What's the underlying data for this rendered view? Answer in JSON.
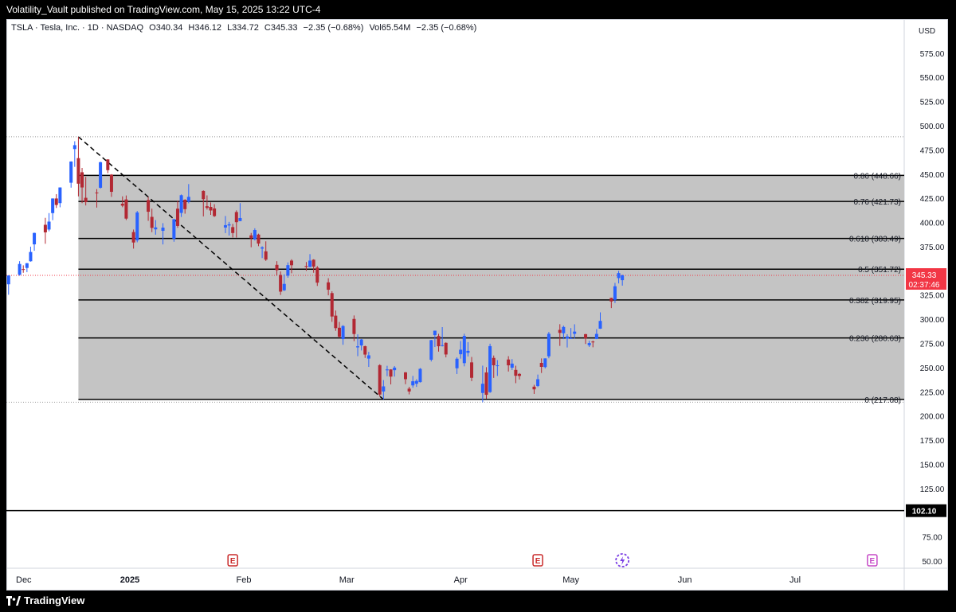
{
  "header": {
    "publisher_line": "Volatility_Vault published on TradingView.com, May 15, 2025 13:22 UTC-4"
  },
  "legend": {
    "symbol": "TSLA · Tesla, Inc. · 1D · NASDAQ",
    "open": "O340.34",
    "high": "H346.12",
    "low": "L334.72",
    "close": "C345.33",
    "change": "−2.35 (−0.68%)",
    "volume": "Vol65.54M",
    "vol_change": "−2.35 (−0.68%)"
  },
  "footer": {
    "brand": "TradingView"
  },
  "colors": {
    "up": "#2962ff",
    "down": "#b22833",
    "fib_zone": "#c4c4c4",
    "price_tag": "#f23645"
  },
  "chart_data": {
    "type": "candlestick",
    "currency": "USD",
    "ylim": [
      45,
      600
    ],
    "y_ticks": [
      50,
      75,
      100,
      125,
      150,
      175,
      200,
      225,
      250,
      275,
      300,
      325,
      350,
      375,
      400,
      425,
      450,
      475,
      500,
      525,
      550,
      575
    ],
    "y_tick_labels": [
      "50.00",
      "75.00",
      "100.00",
      "125.00",
      "150.00",
      "175.00",
      "200.00",
      "225.00",
      "250.00",
      "275.00",
      "300.00",
      "325.00",
      "350.00",
      "375.00",
      "400.00",
      "425.00",
      "450.00",
      "475.00",
      "500.00",
      "525.00",
      "550.00",
      "575.00"
    ],
    "x_labels": [
      {
        "label": "Dec",
        "date": "2024-12-01",
        "bold": false
      },
      {
        "label": "2025",
        "date": "2025-01-01",
        "bold": true
      },
      {
        "label": "Feb",
        "date": "2025-02-01",
        "bold": false
      },
      {
        "label": "Mar",
        "date": "2025-03-01",
        "bold": false
      },
      {
        "label": "Apr",
        "date": "2025-04-01",
        "bold": false
      },
      {
        "label": "May",
        "date": "2025-05-01",
        "bold": false
      },
      {
        "label": "Jun",
        "date": "2025-06-01",
        "bold": false
      },
      {
        "label": "Jul",
        "date": "2025-07-01",
        "bold": false
      }
    ],
    "last_price": {
      "value": 345.33,
      "label": "345.33",
      "countdown": "02:37:46"
    },
    "support_line": {
      "value": 102.1,
      "label": "102.10"
    },
    "fib_levels": [
      {
        "ratio": 0.86,
        "value": 448.66,
        "label": "0.86 (448.66)"
      },
      {
        "ratio": 0.76,
        "value": 421.73,
        "label": "0.76 (421.73)"
      },
      {
        "ratio": 0.618,
        "value": 383.49,
        "label": "0.618 (383.49)"
      },
      {
        "ratio": 0.5,
        "value": 351.72,
        "label": "0.5 (351.72)"
      },
      {
        "ratio": 0.382,
        "value": 319.95,
        "label": "0.382 (319.95)"
      },
      {
        "ratio": 0.236,
        "value": 280.63,
        "label": "0.236 (280.63)"
      },
      {
        "ratio": 0,
        "value": 217.08,
        "label": "0 (217.08)"
      }
    ],
    "fib_range": {
      "start": "2024-12-18",
      "end": "2025-07-24",
      "high": 488.54,
      "low": 214.25
    },
    "trend_line": {
      "from": {
        "date": "2024-12-18",
        "value": 488.54
      },
      "to": {
        "date": "2025-03-11",
        "value": 217.08
      }
    },
    "earnings_markers": [
      {
        "date": "2025-01-29",
        "label": "E"
      },
      {
        "date": "2025-04-22",
        "label": "E"
      },
      {
        "date": "2025-07-22",
        "label": "E"
      }
    ],
    "event_markers": [
      {
        "date": "2025-05-15"
      }
    ],
    "candles": [
      {
        "d": "2024-11-29",
        "o": 336.1,
        "h": 345.5,
        "l": 325.3,
        "c": 345.2
      },
      {
        "d": "2024-12-02",
        "o": 346.0,
        "h": 360.0,
        "l": 345.0,
        "c": 357.1
      },
      {
        "d": "2024-12-03",
        "o": 351.8,
        "h": 355.7,
        "l": 348.0,
        "c": 351.4
      },
      {
        "d": "2024-12-04",
        "o": 353.0,
        "h": 358.1,
        "l": 348.6,
        "c": 357.9
      },
      {
        "d": "2024-12-05",
        "o": 359.9,
        "h": 375.0,
        "l": 359.5,
        "c": 369.5
      },
      {
        "d": "2024-12-06",
        "o": 377.4,
        "h": 389.5,
        "l": 370.8,
        "c": 389.2
      },
      {
        "d": "2024-12-09",
        "o": 397.6,
        "h": 404.8,
        "l": 378.0,
        "c": 389.8
      },
      {
        "d": "2024-12-10",
        "o": 392.7,
        "h": 409.7,
        "l": 390.9,
        "c": 400.9
      },
      {
        "d": "2024-12-11",
        "o": 409.7,
        "h": 424.9,
        "l": 402.4,
        "c": 424.8
      },
      {
        "d": "2024-12-12",
        "o": 424.8,
        "h": 429.3,
        "l": 415.0,
        "c": 418.1
      },
      {
        "d": "2024-12-13",
        "o": 420.0,
        "h": 436.3,
        "l": 415.7,
        "c": 436.2
      },
      {
        "d": "2024-12-16",
        "o": 441.1,
        "h": 463.2,
        "l": 436.0,
        "c": 463.0
      },
      {
        "d": "2024-12-17",
        "o": 475.9,
        "h": 483.99,
        "l": 457.5,
        "c": 479.9
      },
      {
        "d": "2024-12-18",
        "o": 466.5,
        "h": 488.54,
        "l": 427.0,
        "c": 440.1
      },
      {
        "d": "2024-12-19",
        "o": 451.9,
        "h": 456.4,
        "l": 420.0,
        "c": 436.2
      },
      {
        "d": "2024-12-20",
        "o": 425.5,
        "h": 447.1,
        "l": 417.6,
        "c": 421.1
      },
      {
        "d": "2024-12-23",
        "o": 431.0,
        "h": 434.5,
        "l": 415.4,
        "c": 430.6
      },
      {
        "d": "2024-12-24",
        "o": 435.9,
        "h": 462.8,
        "l": 435.1,
        "c": 462.3
      },
      {
        "d": "2024-12-26",
        "o": 465.2,
        "h": 465.3,
        "l": 451.0,
        "c": 454.1
      },
      {
        "d": "2024-12-27",
        "o": 449.5,
        "h": 450.0,
        "l": 426.5,
        "c": 431.7
      },
      {
        "d": "2024-12-30",
        "o": 419.4,
        "h": 427.0,
        "l": 415.8,
        "c": 417.4
      },
      {
        "d": "2024-12-31",
        "o": 423.8,
        "h": 427.9,
        "l": 402.5,
        "c": 404.0
      },
      {
        "d": "2025-01-02",
        "o": 390.1,
        "h": 392.7,
        "l": 373.0,
        "c": 379.3
      },
      {
        "d": "2025-01-03",
        "o": 381.5,
        "h": 411.9,
        "l": 379.5,
        "c": 410.4
      },
      {
        "d": "2025-01-06",
        "o": 423.2,
        "h": 426.4,
        "l": 401.7,
        "c": 411.1
      },
      {
        "d": "2025-01-07",
        "o": 405.8,
        "h": 414.3,
        "l": 390.0,
        "c": 394.4
      },
      {
        "d": "2025-01-08",
        "o": 392.9,
        "h": 402.5,
        "l": 387.4,
        "c": 394.9
      },
      {
        "d": "2025-01-10",
        "o": 391.4,
        "h": 399.3,
        "l": 377.3,
        "c": 394.7
      },
      {
        "d": "2025-01-13",
        "o": 383.2,
        "h": 403.8,
        "l": 380.1,
        "c": 403.3
      },
      {
        "d": "2025-01-14",
        "o": 414.3,
        "h": 422.6,
        "l": 394.5,
        "c": 396.4
      },
      {
        "d": "2025-01-15",
        "o": 409.9,
        "h": 429.0,
        "l": 405.7,
        "c": 428.2
      },
      {
        "d": "2025-01-16",
        "o": 423.5,
        "h": 424.0,
        "l": 409.1,
        "c": 413.8
      },
      {
        "d": "2025-01-17",
        "o": 421.5,
        "h": 439.7,
        "l": 419.8,
        "c": 426.5
      },
      {
        "d": "2025-01-21",
        "o": 432.6,
        "h": 433.2,
        "l": 406.3,
        "c": 424.1
      },
      {
        "d": "2025-01-22",
        "o": 416.8,
        "h": 428.0,
        "l": 413.3,
        "c": 415.1
      },
      {
        "d": "2025-01-23",
        "o": 416.1,
        "h": 420.7,
        "l": 407.9,
        "c": 412.4
      },
      {
        "d": "2025-01-24",
        "o": 414.5,
        "h": 418.9,
        "l": 405.7,
        "c": 406.6
      },
      {
        "d": "2025-01-27",
        "o": 394.8,
        "h": 406.7,
        "l": 389.0,
        "c": 397.2
      },
      {
        "d": "2025-01-28",
        "o": 396.9,
        "h": 400.6,
        "l": 386.5,
        "c": 398.1
      },
      {
        "d": "2025-01-29",
        "o": 395.2,
        "h": 398.6,
        "l": 384.5,
        "c": 389.1
      },
      {
        "d": "2025-01-30",
        "o": 410.8,
        "h": 412.5,
        "l": 384.4,
        "c": 400.3
      },
      {
        "d": "2025-01-31",
        "o": 401.5,
        "h": 419.99,
        "l": 401.3,
        "c": 404.6
      },
      {
        "d": "2025-02-03",
        "o": 386.7,
        "h": 389.2,
        "l": 374.4,
        "c": 383.7
      },
      {
        "d": "2025-02-04",
        "o": 382.6,
        "h": 394.0,
        "l": 381.4,
        "c": 392.2
      },
      {
        "d": "2025-02-05",
        "o": 387.5,
        "h": 388.4,
        "l": 375.5,
        "c": 378.2
      },
      {
        "d": "2025-02-06",
        "o": 373.0,
        "h": 375.4,
        "l": 363.2,
        "c": 374.3
      },
      {
        "d": "2025-02-07",
        "o": 370.2,
        "h": 380.5,
        "l": 360.3,
        "c": 361.6
      },
      {
        "d": "2025-02-10",
        "o": 356.2,
        "h": 360.0,
        "l": 345.0,
        "c": 350.7
      },
      {
        "d": "2025-02-11",
        "o": 345.8,
        "h": 349.4,
        "l": 325.1,
        "c": 328.5
      },
      {
        "d": "2025-02-12",
        "o": 329.9,
        "h": 346.4,
        "l": 329.1,
        "c": 336.5
      },
      {
        "d": "2025-02-13",
        "o": 345.0,
        "h": 358.7,
        "l": 342.9,
        "c": 355.9
      },
      {
        "d": "2025-02-14",
        "o": 360.6,
        "h": 362.0,
        "l": 347.5,
        "c": 355.8
      },
      {
        "d": "2025-02-18",
        "o": 355.0,
        "h": 359.1,
        "l": 350.0,
        "c": 354.1
      },
      {
        "d": "2025-02-19",
        "o": 354.0,
        "h": 367.3,
        "l": 353.7,
        "c": 360.6
      },
      {
        "d": "2025-02-20",
        "o": 361.5,
        "h": 362.0,
        "l": 348.0,
        "c": 354.4
      },
      {
        "d": "2025-02-21",
        "o": 353.4,
        "h": 354.98,
        "l": 334.4,
        "c": 337.8
      },
      {
        "d": "2025-02-24",
        "o": 338.1,
        "h": 342.4,
        "l": 324.7,
        "c": 330.5
      },
      {
        "d": "2025-02-25",
        "o": 327.0,
        "h": 328.9,
        "l": 297.3,
        "c": 302.8
      },
      {
        "d": "2025-02-26",
        "o": 303.7,
        "h": 309.0,
        "l": 288.0,
        "c": 290.8
      },
      {
        "d": "2025-02-27",
        "o": 291.2,
        "h": 297.2,
        "l": 280.9,
        "c": 281.95
      },
      {
        "d": "2025-02-28",
        "o": 279.5,
        "h": 293.9,
        "l": 273.6,
        "c": 292.98
      },
      {
        "d": "2025-03-03",
        "o": 300.3,
        "h": 303.9,
        "l": 277.3,
        "c": 284.7
      },
      {
        "d": "2025-03-04",
        "o": 270.9,
        "h": 284.35,
        "l": 261.8,
        "c": 272.0
      },
      {
        "d": "2025-03-05",
        "o": 272.9,
        "h": 279.55,
        "l": 267.7,
        "c": 279.1
      },
      {
        "d": "2025-03-06",
        "o": 272.1,
        "h": 272.65,
        "l": 260.0,
        "c": 263.45
      },
      {
        "d": "2025-03-07",
        "o": 259.3,
        "h": 266.25,
        "l": 250.7,
        "c": 262.67
      },
      {
        "d": "2025-03-10",
        "o": 252.5,
        "h": 253.4,
        "l": 220.0,
        "c": 222.15
      },
      {
        "d": "2025-03-11",
        "o": 225.3,
        "h": 237.1,
        "l": 217.02,
        "c": 230.58
      },
      {
        "d": "2025-03-12",
        "o": 247.2,
        "h": 251.84,
        "l": 241.1,
        "c": 248.09
      },
      {
        "d": "2025-03-13",
        "o": 248.1,
        "h": 248.29,
        "l": 232.6,
        "c": 240.68
      },
      {
        "d": "2025-03-14",
        "o": 247.3,
        "h": 251.58,
        "l": 240.73,
        "c": 249.98
      },
      {
        "d": "2025-03-17",
        "o": 245.1,
        "h": 245.4,
        "l": 232.8,
        "c": 238.01
      },
      {
        "d": "2025-03-18",
        "o": 228.2,
        "h": 230.1,
        "l": 222.3,
        "c": 225.31
      },
      {
        "d": "2025-03-19",
        "o": 231.6,
        "h": 241.4,
        "l": 229.2,
        "c": 235.86
      },
      {
        "d": "2025-03-20",
        "o": 233.3,
        "h": 238.0,
        "l": 230.05,
        "c": 236.26
      },
      {
        "d": "2025-03-21",
        "o": 234.99,
        "h": 249.52,
        "l": 234.55,
        "c": 248.71
      },
      {
        "d": "2025-03-24",
        "o": 258.1,
        "h": 278.64,
        "l": 256.33,
        "c": 278.39
      },
      {
        "d": "2025-03-25",
        "o": 283.6,
        "h": 288.2,
        "l": 271.28,
        "c": 288.14
      },
      {
        "d": "2025-03-26",
        "o": 282.66,
        "h": 284.9,
        "l": 266.51,
        "c": 272.06
      },
      {
        "d": "2025-03-27",
        "o": 272.48,
        "h": 291.85,
        "l": 271.82,
        "c": 273.13
      },
      {
        "d": "2025-03-28",
        "o": 275.58,
        "h": 276.1,
        "l": 260.57,
        "c": 263.55
      },
      {
        "d": "2025-03-31",
        "o": 249.31,
        "h": 260.56,
        "l": 243.36,
        "c": 259.16
      },
      {
        "d": "2025-04-01",
        "o": 263.8,
        "h": 277.45,
        "l": 259.25,
        "c": 268.46
      },
      {
        "d": "2025-04-02",
        "o": 254.6,
        "h": 284.99,
        "l": 251.27,
        "c": 282.76
      },
      {
        "d": "2025-04-03",
        "o": 265.29,
        "h": 276.3,
        "l": 261.51,
        "c": 267.28
      },
      {
        "d": "2025-04-04",
        "o": 255.38,
        "h": 261.0,
        "l": 236.0,
        "c": 239.43
      },
      {
        "d": "2025-04-07",
        "o": 223.78,
        "h": 252.0,
        "l": 214.25,
        "c": 233.29
      },
      {
        "d": "2025-04-08",
        "o": 245.0,
        "h": 250.44,
        "l": 217.8,
        "c": 221.86
      },
      {
        "d": "2025-04-09",
        "o": 224.69,
        "h": 274.69,
        "l": 223.88,
        "c": 272.2
      },
      {
        "d": "2025-04-10",
        "o": 260.0,
        "h": 262.49,
        "l": 239.33,
        "c": 252.4
      },
      {
        "d": "2025-04-11",
        "o": 251.84,
        "h": 257.74,
        "l": 241.36,
        "c": 252.31
      },
      {
        "d": "2025-04-14",
        "o": 258.36,
        "h": 261.8,
        "l": 245.93,
        "c": 252.35
      },
      {
        "d": "2025-04-15",
        "o": 249.91,
        "h": 258.75,
        "l": 247.54,
        "c": 254.11
      },
      {
        "d": "2025-04-16",
        "o": 247.61,
        "h": 251.97,
        "l": 233.89,
        "c": 241.55
      },
      {
        "d": "2025-04-17",
        "o": 243.47,
        "h": 244.34,
        "l": 237.68,
        "c": 241.37
      },
      {
        "d": "2025-04-21",
        "o": 230.26,
        "h": 232.21,
        "l": 222.79,
        "c": 227.5
      },
      {
        "d": "2025-04-22",
        "o": 230.96,
        "h": 242.79,
        "l": 229.85,
        "c": 237.97
      },
      {
        "d": "2025-04-23",
        "o": 254.86,
        "h": 259.45,
        "l": 244.43,
        "c": 250.74
      },
      {
        "d": "2025-04-24",
        "o": 250.5,
        "h": 259.54,
        "l": 249.2,
        "c": 259.51
      },
      {
        "d": "2025-04-25",
        "o": 261.69,
        "h": 286.85,
        "l": 259.63,
        "c": 284.95
      },
      {
        "d": "2025-04-28",
        "o": 288.98,
        "h": 294.86,
        "l": 272.42,
        "c": 285.88
      },
      {
        "d": "2025-04-29",
        "o": 285.5,
        "h": 293.32,
        "l": 279.47,
        "c": 292.03
      },
      {
        "d": "2025-04-30",
        "o": 279.9,
        "h": 284.45,
        "l": 270.78,
        "c": 282.16
      },
      {
        "d": "2025-05-01",
        "o": 280.01,
        "h": 290.87,
        "l": 279.81,
        "c": 280.52
      },
      {
        "d": "2025-05-02",
        "o": 284.9,
        "h": 294.78,
        "l": 279.81,
        "c": 287.21
      },
      {
        "d": "2025-05-05",
        "o": 284.57,
        "h": 284.85,
        "l": 274.4,
        "c": 280.26
      },
      {
        "d": "2025-05-06",
        "o": 273.11,
        "h": 277.73,
        "l": 271.35,
        "c": 275.35
      },
      {
        "d": "2025-05-07",
        "o": 276.88,
        "h": 277.92,
        "l": 271.0,
        "c": 276.22
      },
      {
        "d": "2025-05-08",
        "o": 279.63,
        "h": 289.8,
        "l": 279.41,
        "c": 284.82
      },
      {
        "d": "2025-05-09",
        "o": 290.21,
        "h": 307.04,
        "l": 290.0,
        "c": 298.26
      },
      {
        "d": "2025-05-12",
        "o": 321.99,
        "h": 322.21,
        "l": 311.5,
        "c": 318.38
      },
      {
        "d": "2025-05-13",
        "o": 320.0,
        "h": 337.59,
        "l": 316.8,
        "c": 334.07
      },
      {
        "d": "2025-05-14",
        "o": 342.5,
        "h": 350.0,
        "l": 337.0,
        "c": 347.68
      },
      {
        "d": "2025-05-15",
        "o": 340.34,
        "h": 346.12,
        "l": 334.72,
        "c": 345.33
      }
    ]
  }
}
